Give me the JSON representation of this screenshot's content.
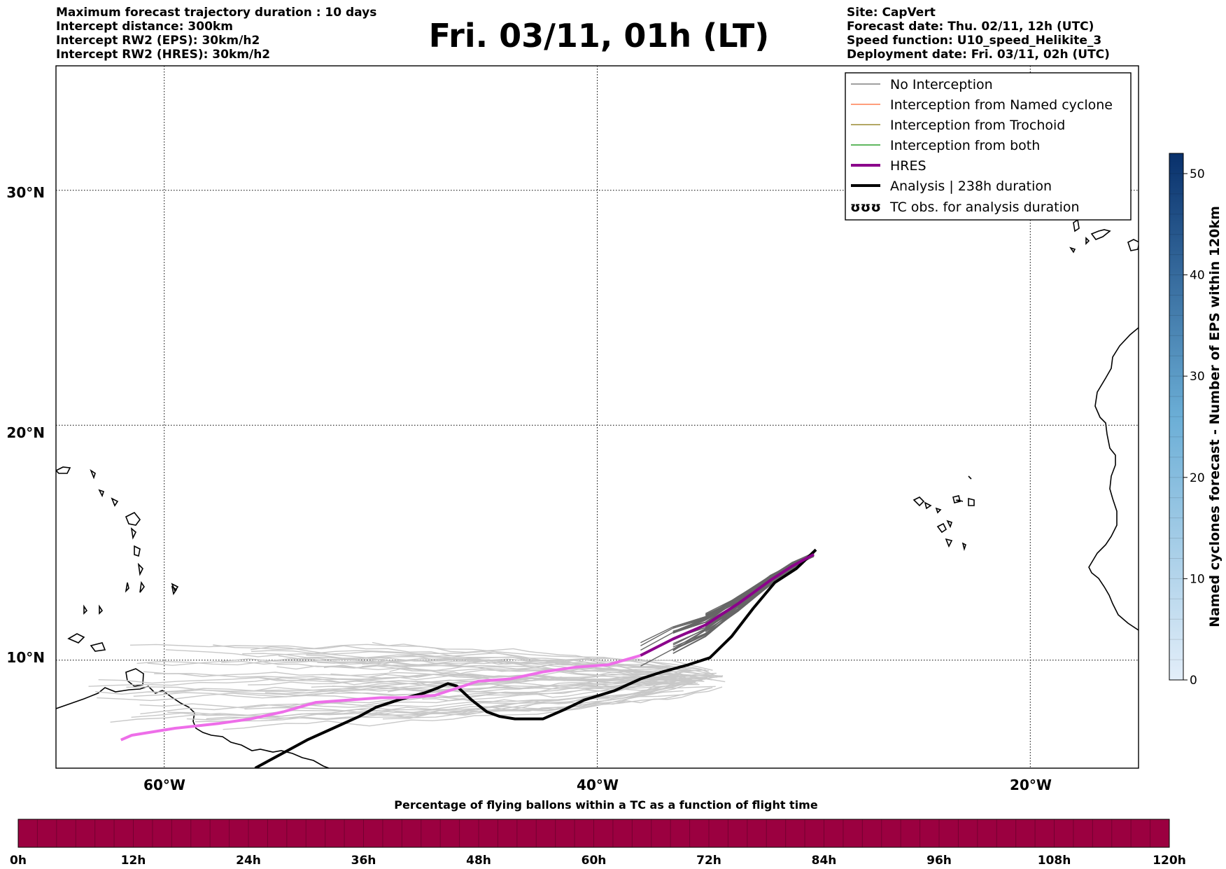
{
  "header": {
    "left_lines": [
      "Maximum forecast trajectory duration : 10 days",
      "Intercept distance: 300km",
      "Intercept RW2 (EPS):  30km/h2",
      "Intercept RW2 (HRES): 30km/h2"
    ],
    "right_lines": [
      "Site: CapVert",
      "Forecast date: Thu. 02/11, 12h (UTC)",
      "Speed function: U10_speed_Helikite_3",
      "Deployment date: Fri. 03/11, 02h (UTC)"
    ],
    "title": "Fri. 03/11, 01h (LT)"
  },
  "map": {
    "lat_labels": [
      "30°N",
      "20°N",
      "10°N"
    ],
    "lon_labels": [
      "60°W",
      "40°W",
      "20°W"
    ],
    "lat_values": [
      30,
      20,
      10
    ],
    "lon_values": [
      -60,
      -40,
      -20
    ],
    "extent": {
      "lon_min": -65,
      "lon_max": -15,
      "lat_min": 5.4,
      "lat_max": 35.3
    }
  },
  "legend": {
    "items": [
      {
        "label": "No Interception",
        "color": "#808080"
      },
      {
        "label": "Interception from Named cyclone",
        "color": "#ff7f50"
      },
      {
        "label": "Interception from Trochoid",
        "color": "#9a8a30"
      },
      {
        "label": "Interception from both",
        "color": "#2ca02c"
      },
      {
        "label": "HRES",
        "color": "#8b008b"
      },
      {
        "label": "Analysis | 238h duration",
        "color": "#000000"
      },
      {
        "label": "TC obs. for analysis duration",
        "color": "#000000",
        "symbol": "ʊʊʊ"
      }
    ]
  },
  "colorbar_right": {
    "label": "Named cyclones forecast - Number of EPS within 120km",
    "ticks": [
      "0",
      "10",
      "20",
      "30",
      "40",
      "50"
    ],
    "min": 0,
    "max": 52,
    "color_low": "#e3eef9",
    "color_high": "#08306b"
  },
  "colorbar_bottom": {
    "label": "Percentage of flying ballons within a TC as a function of flight time",
    "ticks": [
      "0h",
      "12h",
      "24h",
      "36h",
      "48h",
      "60h",
      "72h",
      "84h",
      "96h",
      "108h",
      "120h"
    ],
    "color": "#9b0040"
  },
  "tracks": {
    "hres": [
      [
        -30,
        14.5
      ],
      [
        -31,
        14
      ],
      [
        -32,
        13.4
      ],
      [
        -33.5,
        12.4
      ],
      [
        -35,
        11.5
      ],
      [
        -36.5,
        10.9
      ],
      [
        -38,
        10.2
      ],
      [
        -39.5,
        9.8
      ],
      [
        -41,
        9.7
      ],
      [
        -42.5,
        9.5
      ],
      [
        -44,
        9.2
      ],
      [
        -45.5,
        9.1
      ],
      [
        -46.5,
        8.8
      ],
      [
        -47.5,
        8.5
      ],
      [
        -49,
        8.4
      ],
      [
        -50,
        8.4
      ],
      [
        -51.5,
        8.3
      ],
      [
        -53,
        8.2
      ],
      [
        -54.5,
        7.8
      ],
      [
        -56,
        7.5
      ],
      [
        -57.5,
        7.3
      ],
      [
        -59.5,
        7.1
      ],
      [
        -61.5,
        6.8
      ],
      [
        -62,
        6.6
      ]
    ],
    "analysis": [
      [
        -29.9,
        14.7
      ],
      [
        -30.8,
        13.9
      ],
      [
        -31.8,
        13.3
      ],
      [
        -32.8,
        12.2
      ],
      [
        -33.8,
        11
      ],
      [
        -34.8,
        10.1
      ],
      [
        -35.8,
        9.8
      ],
      [
        -37,
        9.5
      ],
      [
        -38,
        9.2
      ],
      [
        -39.2,
        8.7
      ],
      [
        -40.6,
        8.3
      ],
      [
        -41.5,
        7.9
      ],
      [
        -42.5,
        7.5
      ],
      [
        -43,
        7.5
      ],
      [
        -43.8,
        7.5
      ],
      [
        -44.5,
        7.6
      ],
      [
        -45.1,
        7.8
      ],
      [
        -45.8,
        8.3
      ],
      [
        -46.5,
        8.9
      ],
      [
        -46.9,
        9
      ],
      [
        -47.4,
        8.8
      ],
      [
        -48,
        8.6
      ],
      [
        -49.2,
        8.3
      ],
      [
        -50.2,
        8
      ],
      [
        -51,
        7.6
      ],
      [
        -52.2,
        7.1
      ],
      [
        -53.4,
        6.6
      ],
      [
        -54.4,
        6.1
      ],
      [
        -55.2,
        5.7
      ],
      [
        -55.8,
        5.4
      ]
    ]
  }
}
